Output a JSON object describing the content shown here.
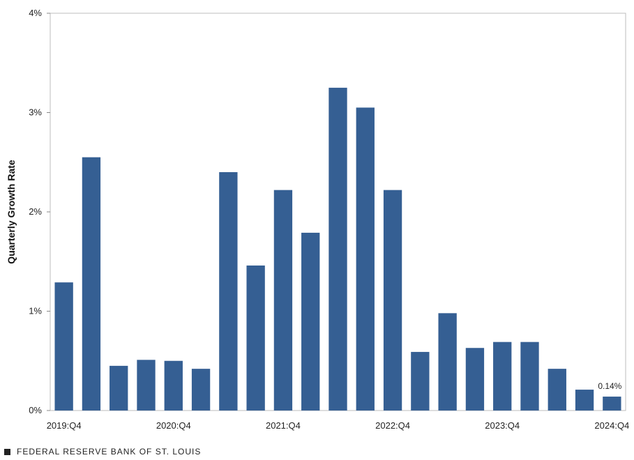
{
  "chart_data": {
    "type": "bar",
    "categories": [
      "2019:Q4",
      "2020:Q1",
      "2020:Q2",
      "2020:Q3",
      "2020:Q4",
      "2021:Q1",
      "2021:Q2",
      "2021:Q3",
      "2021:Q4",
      "2022:Q1",
      "2022:Q2",
      "2022:Q3",
      "2022:Q4",
      "2023:Q1",
      "2023:Q2",
      "2023:Q3",
      "2023:Q4",
      "2024:Q1",
      "2024:Q2",
      "2024:Q3",
      "2024:Q4"
    ],
    "values": [
      1.29,
      2.55,
      0.45,
      0.51,
      0.5,
      0.42,
      2.4,
      1.46,
      2.22,
      1.79,
      3.25,
      3.05,
      2.22,
      0.59,
      0.98,
      0.63,
      0.69,
      0.69,
      0.42,
      0.21,
      0.14
    ],
    "x_tick_labels": [
      "2019:Q4",
      "2020:Q4",
      "2021:Q4",
      "2022:Q4",
      "2023:Q4",
      "2024:Q4"
    ],
    "y_ticks": [
      "0%",
      "1%",
      "2%",
      "3%",
      "4%"
    ],
    "ylabel": "Quarterly Growth Rate",
    "xlabel": "",
    "ylim": [
      0,
      4
    ],
    "annotations": [
      {
        "category": "2024:Q4",
        "text": "0.14%"
      }
    ],
    "bar_color": "#355f93",
    "grid": false
  },
  "footer": {
    "source": "FEDERAL RESERVE BANK OF ST. LOUIS"
  }
}
